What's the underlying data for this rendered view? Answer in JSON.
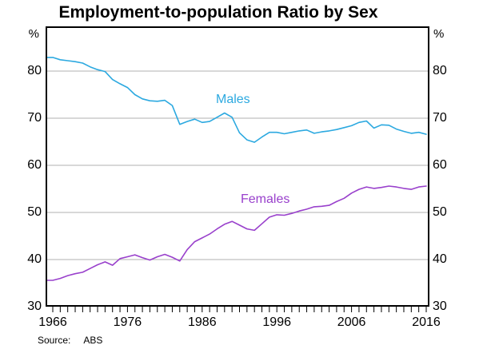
{
  "title": "Employment-to-population Ratio by Sex",
  "unit_left": "%",
  "unit_right": "%",
  "source": {
    "label": "Source:",
    "value": "ABS"
  },
  "series_labels": {
    "males": "Males",
    "females": "Females"
  },
  "colors": {
    "males": "#2CA9E0",
    "females": "#9940CC",
    "grid": "#B0B0B0",
    "axis": "#000000",
    "background": "#FFFFFF",
    "text": "#000000"
  },
  "chart_data": {
    "type": "line",
    "title": "Employment-to-population Ratio by Sex",
    "ylabel": "%",
    "ylabel_right": "%",
    "xlabel": "",
    "grid": true,
    "ylim": [
      30,
      89.5
    ],
    "y_ticks": [
      30,
      40,
      50,
      60,
      70,
      80
    ],
    "x_tick_labels": [
      1966,
      1976,
      1986,
      1996,
      2006,
      2016
    ],
    "years": [
      1966,
      1967,
      1968,
      1969,
      1970,
      1971,
      1972,
      1973,
      1974,
      1975,
      1976,
      1977,
      1978,
      1979,
      1980,
      1981,
      1982,
      1983,
      1984,
      1985,
      1986,
      1987,
      1988,
      1989,
      1990,
      1991,
      1992,
      1993,
      1994,
      1995,
      1996,
      1997,
      1998,
      1999,
      2000,
      2001,
      2002,
      2003,
      2004,
      2005,
      2006,
      2007,
      2008,
      2009,
      2010,
      2011,
      2012,
      2013,
      2014,
      2015,
      2016
    ],
    "series": [
      {
        "name": "Males",
        "color": "#2CA9E0",
        "values": [
          82.9,
          82.4,
          82.2,
          82.0,
          81.7,
          80.9,
          80.3,
          79.9,
          78.2,
          77.3,
          76.5,
          75.0,
          74.1,
          73.7,
          73.6,
          73.8,
          72.7,
          68.7,
          69.3,
          69.8,
          69.1,
          69.3,
          70.2,
          71.1,
          70.2,
          66.9,
          65.4,
          64.9,
          66.0,
          67.0,
          67.0,
          66.7,
          67.0,
          67.3,
          67.5,
          66.8,
          67.1,
          67.3,
          67.6,
          68.0,
          68.4,
          69.1,
          69.4,
          67.9,
          68.6,
          68.5,
          67.7,
          67.2,
          66.8,
          67.0,
          66.6
        ]
      },
      {
        "name": "Females",
        "color": "#9940CC",
        "values": [
          35.6,
          36.0,
          36.6,
          37.0,
          37.3,
          38.1,
          38.9,
          39.5,
          38.8,
          40.2,
          40.6,
          41.0,
          40.4,
          39.9,
          40.6,
          41.1,
          40.5,
          39.7,
          42.1,
          43.8,
          44.6,
          45.4,
          46.5,
          47.5,
          48.1,
          47.3,
          46.5,
          46.2,
          47.6,
          49.0,
          49.5,
          49.4,
          49.8,
          50.3,
          50.7,
          51.2,
          51.3,
          51.5,
          52.3,
          53.0,
          54.1,
          54.9,
          55.4,
          55.1,
          55.3,
          55.6,
          55.4,
          55.1,
          54.9,
          55.4,
          55.6
        ]
      }
    ],
    "legend_position": "inline-annotations",
    "source": "ABS"
  }
}
